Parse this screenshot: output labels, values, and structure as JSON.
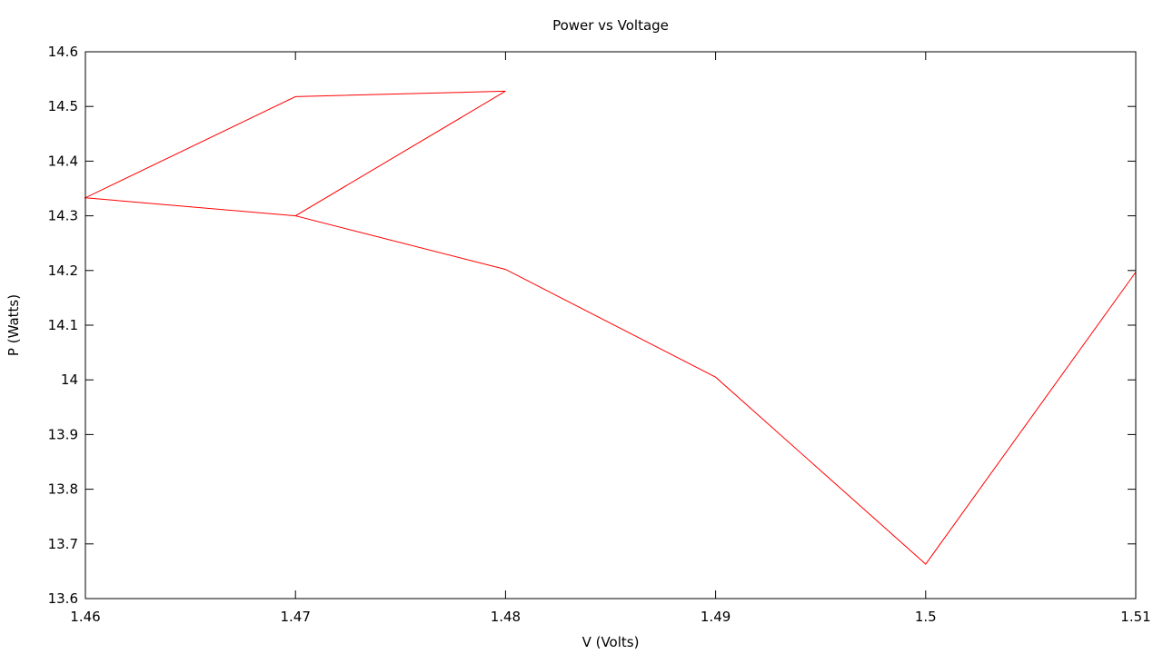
{
  "chart_data": {
    "type": "line",
    "title": "Power vs Voltage",
    "xlabel": "V (Volts)",
    "ylabel": "P (Watts)",
    "xlim": [
      1.46,
      1.51
    ],
    "ylim": [
      13.6,
      14.6
    ],
    "grid": false,
    "legend": "none",
    "x_ticks": [
      "1.46",
      "1.47",
      "1.48",
      "1.49",
      "1.5",
      "1.51"
    ],
    "y_ticks": [
      "13.6",
      "13.7",
      "13.8",
      "13.9",
      "14",
      "14.1",
      "14.2",
      "14.3",
      "14.4",
      "14.5",
      "14.6"
    ],
    "series": [
      {
        "color": "#ff0000",
        "x": [
          1.48,
          1.47,
          1.46,
          1.47,
          1.48,
          1.47,
          1.48,
          1.49,
          1.5,
          1.51
        ],
        "y": [
          14.528,
          14.518,
          14.333,
          14.3,
          14.528,
          14.3,
          14.202,
          14.005,
          13.663,
          14.197
        ]
      }
    ]
  }
}
